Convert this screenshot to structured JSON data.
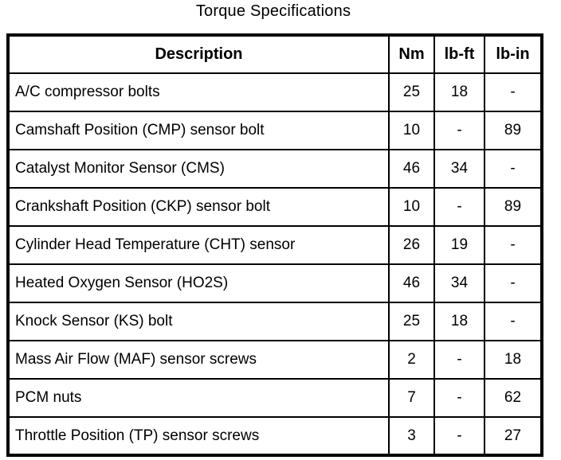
{
  "title": "Torque Specifications",
  "table": {
    "headers": [
      "Description",
      "Nm",
      "lb-ft",
      "lb-in"
    ],
    "rows": [
      [
        "A/C compressor bolts",
        "25",
        "18",
        "-"
      ],
      [
        "Camshaft Position (CMP) sensor bolt",
        "10",
        "-",
        "89"
      ],
      [
        "Catalyst Monitor Sensor (CMS)",
        "46",
        "34",
        "-"
      ],
      [
        "Crankshaft Position (CKP) sensor bolt",
        "10",
        "-",
        "89"
      ],
      [
        "Cylinder Head Temperature (CHT) sensor",
        "26",
        "19",
        "-"
      ],
      [
        "Heated Oxygen Sensor (HO2S)",
        "46",
        "34",
        "-"
      ],
      [
        "Knock Sensor (KS) bolt",
        "25",
        "18",
        "-"
      ],
      [
        "Mass Air Flow (MAF) sensor screws",
        "2",
        "-",
        "18"
      ],
      [
        "PCM nuts",
        "7",
        "-",
        "62"
      ],
      [
        "Throttle Position (TP) sensor screws",
        "3",
        "-",
        "27"
      ]
    ],
    "colors": {
      "border": "#000000",
      "text": "#000000",
      "background": "#ffffff"
    }
  }
}
